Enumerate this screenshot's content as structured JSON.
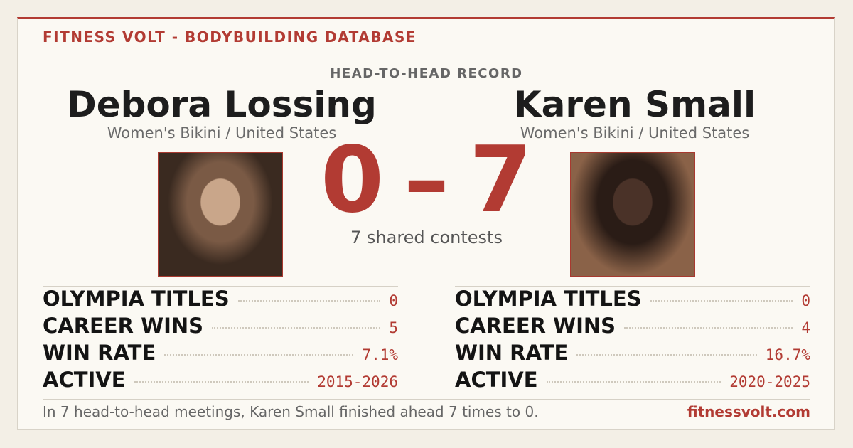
{
  "header": {
    "brand": "FITNESS VOLT - BODYBUILDING DATABASE"
  },
  "subtitle": "HEAD-TO-HEAD RECORD",
  "athletes": [
    {
      "name": "Debora Lossing",
      "division": "Women's Bikini / United States",
      "stats": [
        {
          "label": "OLYMPIA TITLES",
          "value": "0"
        },
        {
          "label": "CAREER WINS",
          "value": "5"
        },
        {
          "label": "WIN RATE",
          "value": "7.1%"
        },
        {
          "label": "ACTIVE",
          "value": "2015-2026"
        }
      ]
    },
    {
      "name": "Karen Small",
      "division": "Women's Bikini / United States",
      "stats": [
        {
          "label": "OLYMPIA TITLES",
          "value": "0"
        },
        {
          "label": "CAREER WINS",
          "value": "4"
        },
        {
          "label": "WIN RATE",
          "value": "16.7%"
        },
        {
          "label": "ACTIVE",
          "value": "2020-2025"
        }
      ]
    }
  ],
  "score": {
    "left": 0,
    "separator": "–",
    "right": 7
  },
  "shared": "7 shared contests",
  "footer": {
    "summary": "In 7 head-to-head meetings, Karen Small finished ahead 7 times to 0.",
    "site": "fitnessvolt.com"
  }
}
